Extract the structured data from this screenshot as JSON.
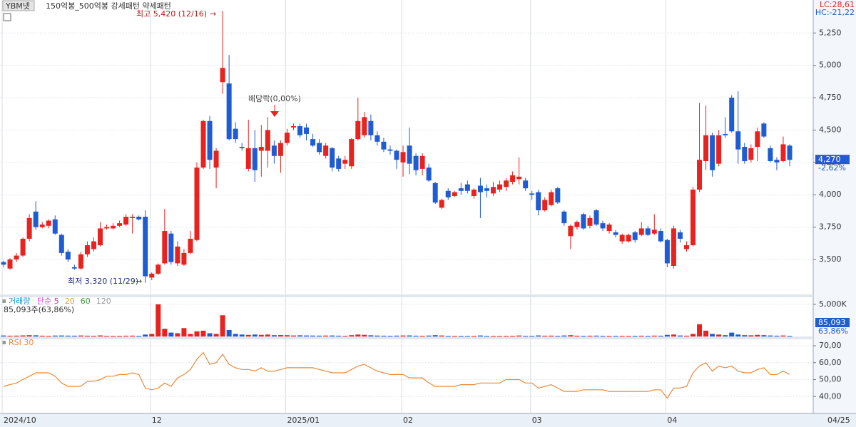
{
  "header": {
    "ticker": "YBM넷",
    "pattern": "150억봉_500억봉 강세패턴  약세패턴",
    "lc": "LC:28,61",
    "hc": "HC:-21,22",
    "cursor_date": "04/25"
  },
  "chart_data": [
    {
      "type": "candlestick",
      "up_color": "#e8231f",
      "down_color": "#1f5bd1",
      "grid": true,
      "high_note": "최고 5,420 (12/16)",
      "low_note": "최저 3,320 (11/29)",
      "dividend_note": "배당락(0,00%)",
      "last_label": "4,270",
      "last_change": "-2,62%",
      "ylim": [
        3230,
        5505
      ],
      "yticks": [
        {
          "value": 3500,
          "label": "3,500"
        },
        {
          "value": 3750,
          "label": "3,750"
        },
        {
          "value": 4000,
          "label": "4,000"
        },
        {
          "value": 4250,
          "label": "4,250"
        },
        {
          "value": 4500,
          "label": "4,500"
        },
        {
          "value": 4750,
          "label": "4,750"
        },
        {
          "value": 5000,
          "label": "5,000"
        },
        {
          "value": 5250,
          "label": "5,250"
        }
      ],
      "categories": [
        "2024/10",
        null,
        null,
        null,
        null,
        null,
        null,
        null,
        null,
        null,
        null,
        null,
        null,
        null,
        null,
        null,
        null,
        null,
        null,
        null,
        null,
        null,
        null,
        "12",
        null,
        null,
        null,
        null,
        null,
        null,
        null,
        null,
        null,
        null,
        null,
        null,
        null,
        null,
        null,
        null,
        null,
        null,
        null,
        null,
        "2025/01",
        null,
        null,
        null,
        null,
        null,
        null,
        null,
        null,
        null,
        null,
        null,
        null,
        null,
        null,
        null,
        null,
        null,
        "02",
        null,
        null,
        null,
        null,
        null,
        null,
        null,
        null,
        null,
        null,
        null,
        null,
        null,
        null,
        null,
        null,
        null,
        null,
        null,
        "03",
        null,
        null,
        null,
        null,
        null,
        null,
        null,
        null,
        null,
        null,
        null,
        null,
        null,
        null,
        null,
        null,
        null,
        null,
        null,
        null,
        "04",
        null,
        null,
        null,
        null,
        null,
        null,
        null,
        null,
        null,
        null,
        null,
        null,
        null,
        null,
        null,
        null,
        null,
        null,
        null
      ],
      "open": [
        3480,
        3430,
        3500,
        3530,
        3660,
        3870,
        3750,
        3760,
        3810,
        3690,
        3560,
        3440,
        3430,
        3540,
        3580,
        3610,
        3740,
        3740,
        3760,
        3770,
        3820,
        3830,
        3830,
        3360,
        3390,
        3470,
        3700,
        3470,
        3460,
        3550,
        3650,
        4210,
        4570,
        4210,
        4870,
        4860,
        4510,
        4370,
        4200,
        4360,
        4340,
        4340,
        4380,
        4300,
        4400,
        4520,
        4530,
        4520,
        4430,
        4400,
        4300,
        4360,
        4280,
        4240,
        4220,
        4430,
        4460,
        4570,
        4460,
        4410,
        4350,
        4340,
        4250,
        4380,
        4300,
        4200,
        4210,
        4090,
        3900,
        4030,
        3990,
        4050,
        4080,
        3990,
        4070,
        4050,
        4010,
        4040,
        4060,
        4100,
        4120,
        4110,
        4010,
        4020,
        3880,
        3920,
        4050,
        3870,
        3680,
        3750,
        3850,
        3760,
        3880,
        3780,
        3720,
        3710,
        3640,
        3640,
        3710,
        3690,
        3740,
        3700,
        3720,
        3650,
        3450,
        3710,
        3580,
        3610,
        4040,
        4260,
        4460,
        4240,
        4470,
        4750,
        4490,
        4370,
        4270,
        4370,
        4550,
        4360,
        4270,
        4260,
        4380
      ],
      "high": [
        3490,
        3510,
        3550,
        3670,
        3850,
        3950,
        3790,
        3810,
        3840,
        3700,
        3580,
        3460,
        3560,
        3640,
        3670,
        3790,
        3770,
        3780,
        3800,
        3850,
        3850,
        3840,
        3880,
        3400,
        3470,
        3890,
        3720,
        3640,
        3580,
        3720,
        4250,
        4580,
        4610,
        4360,
        5420,
        5080,
        4560,
        4400,
        4580,
        4500,
        4540,
        4600,
        4420,
        4420,
        4510,
        4550,
        4550,
        4550,
        4470,
        4430,
        4400,
        4370,
        4300,
        4300,
        4440,
        4750,
        4640,
        4620,
        4490,
        4440,
        4380,
        4350,
        4380,
        4520,
        4320,
        4320,
        4240,
        4100,
        3970,
        4050,
        4030,
        4090,
        4110,
        4050,
        4130,
        4080,
        4100,
        4110,
        4130,
        4180,
        4290,
        4130,
        4030,
        4040,
        3980,
        4040,
        4060,
        3880,
        3770,
        3800,
        3860,
        3840,
        3890,
        3800,
        3780,
        3730,
        3700,
        3700,
        3720,
        3790,
        3760,
        3850,
        3740,
        3660,
        3760,
        3730,
        3640,
        4060,
        4710,
        4690,
        4480,
        4500,
        4600,
        4770,
        4800,
        4400,
        4390,
        4520,
        4560,
        4380,
        4290,
        4450,
        4390
      ],
      "low": [
        3440,
        3420,
        3480,
        3520,
        3640,
        3730,
        3740,
        3740,
        3690,
        3530,
        3480,
        3420,
        3420,
        3520,
        3560,
        3600,
        3730,
        3730,
        3750,
        3760,
        3700,
        3800,
        3320,
        3340,
        3380,
        3460,
        3460,
        3450,
        3450,
        3540,
        3640,
        4200,
        4200,
        4050,
        4780,
        4420,
        4400,
        4340,
        4180,
        4100,
        4140,
        4210,
        4240,
        4170,
        4380,
        4500,
        4440,
        4420,
        4370,
        4310,
        4280,
        4180,
        4180,
        4200,
        4200,
        4420,
        4440,
        4420,
        4380,
        4330,
        4310,
        4200,
        4140,
        4160,
        4150,
        4150,
        4100,
        3930,
        3890,
        3960,
        3980,
        4000,
        4010,
        3970,
        3820,
        3980,
        3990,
        4020,
        4030,
        4080,
        4080,
        4030,
        3960,
        3840,
        3870,
        3910,
        3930,
        3760,
        3580,
        3730,
        3730,
        3740,
        3760,
        3720,
        3700,
        3670,
        3620,
        3630,
        3630,
        3680,
        3680,
        3690,
        3630,
        3440,
        3430,
        3630,
        3560,
        3600,
        4020,
        4190,
        4140,
        4220,
        4440,
        4480,
        4240,
        4240,
        4250,
        4260,
        4440,
        4250,
        4190,
        4250,
        4220
      ],
      "close": [
        3460,
        3500,
        3530,
        3660,
        3820,
        3750,
        3770,
        3800,
        3700,
        3550,
        3500,
        3430,
        3540,
        3610,
        3640,
        3740,
        3750,
        3760,
        3780,
        3830,
        3830,
        3810,
        3370,
        3390,
        3460,
        3720,
        3480,
        3600,
        3550,
        3660,
        4210,
        4570,
        4270,
        4340,
        4980,
        4430,
        4430,
        4360,
        4360,
        4190,
        4370,
        4500,
        4300,
        4400,
        4480,
        4530,
        4460,
        4470,
        4380,
        4330,
        4380,
        4210,
        4200,
        4270,
        4430,
        4570,
        4600,
        4460,
        4410,
        4350,
        4340,
        4270,
        4330,
        4240,
        4190,
        4300,
        4110,
        3940,
        3960,
        3980,
        4020,
        4030,
        4030,
        4040,
        4020,
        4030,
        4060,
        4080,
        4110,
        4150,
        4140,
        4050,
        4000,
        3880,
        3960,
        4020,
        3940,
        3780,
        3760,
        3790,
        3740,
        3820,
        3770,
        3740,
        3770,
        3690,
        3690,
        3690,
        3650,
        3740,
        3690,
        3730,
        3640,
        3470,
        3740,
        3660,
        3610,
        4040,
        4270,
        4460,
        4190,
        4460,
        4460,
        4490,
        4350,
        4260,
        4360,
        4490,
        4450,
        4260,
        4250,
        4390,
        4270
      ]
    },
    {
      "type": "bar",
      "label": "거래량",
      "ma_labels": [
        "단순 5",
        "20",
        "60",
        "120"
      ],
      "ma_colors": [
        "#c23bc2",
        "#e0a020",
        "#3a9a3a",
        "#999999"
      ],
      "label_color": "#1a9bbf",
      "summary": "85,093주(63,86%)",
      "last_label": "85,093",
      "last_ratio": "63,86%",
      "ylim": [
        0,
        6100
      ],
      "yticks": [
        {
          "value": 5000,
          "label": "5,000K"
        }
      ],
      "values": [
        150,
        120,
        130,
        160,
        200,
        180,
        120,
        110,
        140,
        150,
        130,
        120,
        150,
        120,
        110,
        160,
        100,
        90,
        100,
        120,
        130,
        110,
        300,
        400,
        5000,
        1200,
        600,
        500,
        1300,
        400,
        800,
        900,
        500,
        400,
        3300,
        1000,
        400,
        300,
        250,
        300,
        250,
        300,
        200,
        220,
        200,
        150,
        180,
        150,
        140,
        130,
        140,
        150,
        120,
        110,
        200,
        300,
        250,
        180,
        140,
        120,
        110,
        130,
        150,
        160,
        120,
        110,
        140,
        200,
        150,
        100,
        90,
        80,
        90,
        100,
        150,
        90,
        80,
        90,
        100,
        110,
        150,
        110,
        100,
        160,
        120,
        130,
        110,
        150,
        200,
        120,
        110,
        120,
        130,
        100,
        90,
        100,
        110,
        90,
        100,
        120,
        100,
        130,
        120,
        250,
        300,
        150,
        120,
        400,
        1900,
        900,
        400,
        300,
        200,
        600,
        300,
        200,
        180,
        250,
        200,
        150,
        120,
        150,
        85.093
      ]
    },
    {
      "type": "line",
      "label": "RSI 30",
      "color": "#e8893a",
      "ylim": [
        30,
        73.8
      ],
      "yticks": [
        {
          "value": 40,
          "label": "40,00"
        },
        {
          "value": 50,
          "label": "50,00"
        },
        {
          "value": 60,
          "label": "60,00"
        },
        {
          "value": 70,
          "label": "70,00"
        }
      ],
      "values": [
        46,
        47,
        48,
        50,
        52,
        54,
        54,
        54,
        52,
        48,
        46,
        46,
        46,
        49,
        49,
        50,
        52,
        52,
        53,
        53,
        54,
        53,
        45,
        44,
        45,
        48,
        46,
        51,
        53,
        56,
        62,
        66,
        59,
        60,
        65,
        59,
        57,
        56,
        56,
        55,
        57,
        55,
        55,
        56,
        57,
        57,
        57,
        57,
        57,
        56,
        55,
        54,
        54,
        54,
        56,
        58,
        59,
        57,
        55,
        54,
        53,
        53,
        53,
        51,
        51,
        51,
        48,
        46,
        46,
        46,
        46,
        47,
        47,
        47,
        48,
        48,
        48,
        48,
        50,
        50,
        50,
        48,
        48,
        45,
        46,
        47,
        45,
        43,
        43,
        43,
        44,
        44,
        44,
        44,
        43,
        43,
        43,
        43,
        43,
        43,
        43,
        44,
        44,
        39,
        45,
        45,
        46,
        54,
        58,
        60,
        55,
        58,
        57,
        58,
        55,
        54,
        54,
        56,
        57,
        53,
        53,
        55,
        53
      ]
    }
  ]
}
